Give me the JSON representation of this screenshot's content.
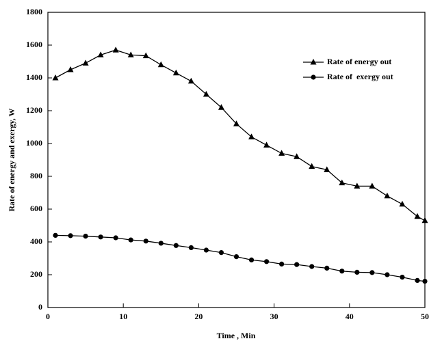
{
  "chart_data": {
    "type": "line",
    "x_label": "Time , Min",
    "y_label": "Rate of energy and exergy, W",
    "x": [
      1,
      3,
      5,
      7,
      9,
      11,
      13,
      15,
      17,
      19,
      21,
      23,
      25,
      27,
      29,
      31,
      33,
      35,
      37,
      39,
      41,
      43,
      45,
      47,
      49,
      50
    ],
    "series": [
      {
        "name": "Rate of energy out",
        "color": "#000000",
        "marker": "triangle",
        "values": [
          1400,
          1450,
          1490,
          1540,
          1570,
          1540,
          1535,
          1480,
          1430,
          1380,
          1300,
          1220,
          1120,
          1040,
          990,
          940,
          920,
          860,
          840,
          760,
          740,
          740,
          680,
          630,
          555,
          530
        ]
      },
      {
        "name": "Rate of  exergy out",
        "color": "#000000",
        "marker": "circle",
        "values": [
          440,
          438,
          435,
          430,
          425,
          412,
          405,
          392,
          378,
          365,
          350,
          335,
          310,
          290,
          280,
          265,
          262,
          250,
          240,
          222,
          215,
          213,
          200,
          185,
          165,
          160
        ]
      }
    ],
    "xlim": [
      0,
      50
    ],
    "xticks": [
      0,
      10,
      20,
      30,
      40,
      50
    ],
    "ylim": [
      0,
      1800
    ],
    "yticks": [
      0,
      200,
      400,
      600,
      800,
      1000,
      1200,
      1400,
      1600,
      1800
    ]
  }
}
